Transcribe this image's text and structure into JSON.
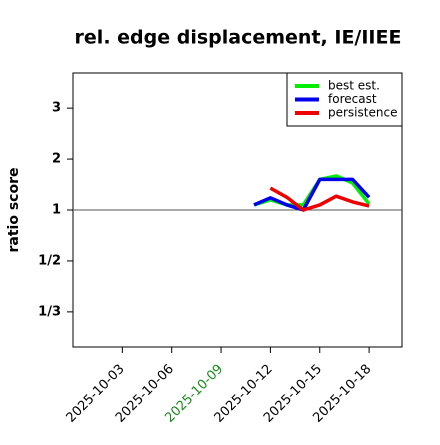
{
  "chart_data": {
    "type": "line",
    "title": "rel. edge displacement, IE/IIEE",
    "ylabel": "ratio score",
    "yscale": "ratio",
    "x": [
      "2025-10-11",
      "2025-10-12",
      "2025-10-13",
      "2025-10-14",
      "2025-10-15",
      "2025-10-16",
      "2025-10-17",
      "2025-10-18"
    ],
    "series": [
      {
        "name": "best est.",
        "color": "#00ee00",
        "values": [
          1.1,
          1.2,
          1.1,
          1.1,
          1.6,
          1.67,
          1.53,
          1.12
        ]
      },
      {
        "name": "forecast",
        "color": "#0000ee",
        "values": [
          1.1,
          1.24,
          1.1,
          1.0,
          1.6,
          1.6,
          1.6,
          1.25
        ]
      },
      {
        "name": "persistence",
        "color": "#ee0000",
        "values": [
          null,
          1.43,
          1.25,
          1.0,
          1.1,
          1.27,
          1.16,
          1.08
        ]
      }
    ],
    "xlim": [
      "2025-09-30",
      "2025-10-20"
    ],
    "xticks": [
      "2025-10-03",
      "2025-10-06",
      "2025-10-09",
      "2025-10-12",
      "2025-10-15",
      "2025-10-18"
    ],
    "xtick_highlight": "2025-10-09",
    "xtick_highlight_color": "#1a8c1a",
    "ylim": [
      0.271,
      3.69
    ],
    "yticks": [
      {
        "value": 3,
        "label": "3"
      },
      {
        "value": 2,
        "label": "2"
      },
      {
        "value": 1,
        "label": "1"
      },
      {
        "value": 0.5,
        "label": "1/2"
      },
      {
        "value": 0.3333,
        "label": "1/3"
      }
    ],
    "hline": 1,
    "legend": "top-right"
  }
}
